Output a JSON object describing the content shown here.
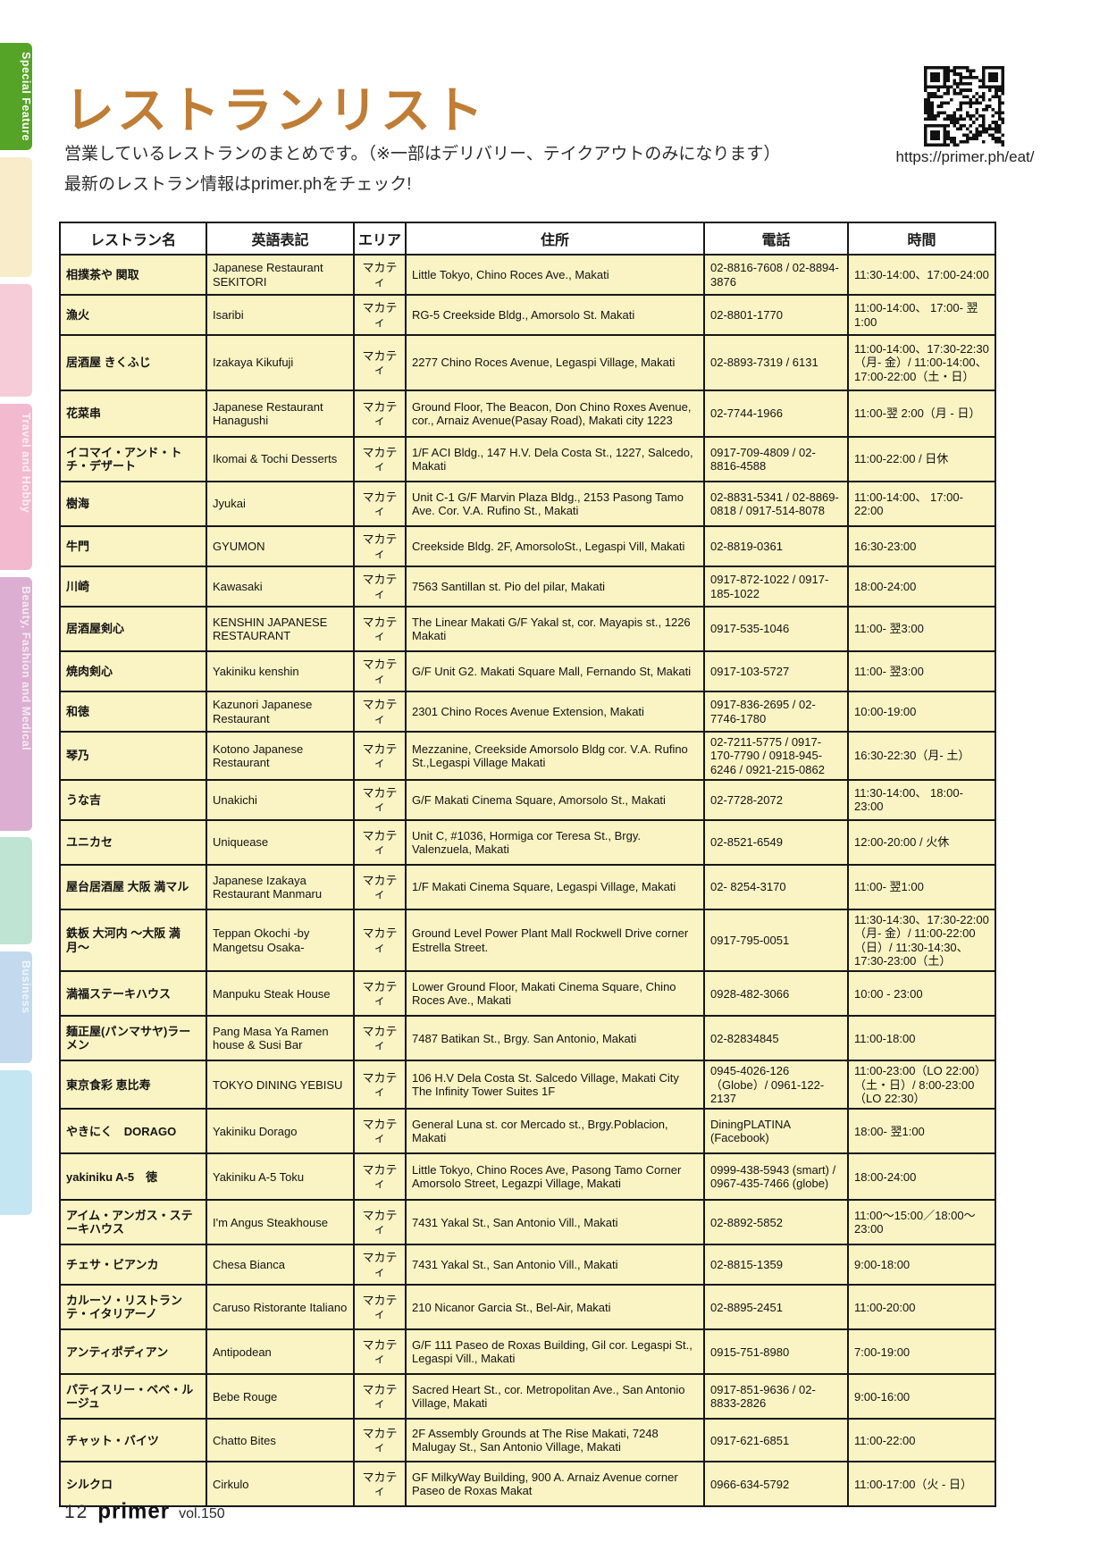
{
  "page": {
    "title": "レストランリスト",
    "subtitle_line1": "営業しているレストランのまとめです。（※一部はデリバリー、テイクアウトのみになります）",
    "subtitle_line2": "最新のレストラン情報はprimer.phをチェック!",
    "qr_url": "https://primer.ph/eat/"
  },
  "sidebar": {
    "tabs": [
      {
        "label": "Special Feature",
        "color": "#56a427",
        "text_color": "#ffffff"
      },
      {
        "label": "",
        "color": "#f8ecca",
        "text_color": "#efe0b2"
      },
      {
        "label": "",
        "color": "#f6ccd9",
        "text_color": "#eeb7ca"
      },
      {
        "label": "Travel and Hobby",
        "color": "#f3b9cf",
        "text_color": "#fdeef5"
      },
      {
        "label": "Beauty, Fashion and Medical",
        "color": "#dcaed2",
        "text_color": "#f6e9f3"
      },
      {
        "label": "",
        "color": "#bfe4d4",
        "text_color": "#a9d8c4"
      },
      {
        "label": "Business",
        "color": "#c3d9ee",
        "text_color": "#eef5fc"
      },
      {
        "label": "",
        "color": "#c4e6f2",
        "text_color": "#aedcee"
      }
    ]
  },
  "table": {
    "headers": [
      "レストラン名",
      "英語表記",
      "エリア",
      "住所",
      "電話",
      "時間"
    ],
    "rows": [
      {
        "name": "相撲茶や 関取",
        "english": "Japanese Restaurant SEKITORI",
        "area": "マカティ",
        "address": "Little Tokyo, Chino Roces Ave., Makati",
        "phone": "02-8816-7608 / 02-8894-3876",
        "hours": "11:30-14:00、17:00-24:00"
      },
      {
        "name": "漁火",
        "english": "Isaribi",
        "area": "マカティ",
        "address": "RG-5 Creekside Bldg., Amorsolo St. Makati",
        "phone": "02-8801-1770",
        "hours": "11:00-14:00、 17:00- 翌1:00"
      },
      {
        "name": "居酒屋 きくふじ",
        "english": "Izakaya Kikufuji",
        "area": "マカティ",
        "address": "2277 Chino Roces Avenue, Legaspi Village, Makati",
        "phone": "02-8893-7319 / 6131",
        "hours": "11:00-14:00、17:30-22:30（月- 金）/ 11:00-14:00、 17:00-22:00（土・日）"
      },
      {
        "name": "花菜串",
        "english": "Japanese Restaurant Hanagushi",
        "area": "マカティ",
        "address": "Ground Floor, The Beacon, Don Chino Roxes Avenue, cor., Arnaiz Avenue(Pasay Road), Makati city 1223",
        "phone": "02-7744-1966",
        "hours": "11:00-翌 2:00（月 - 日）"
      },
      {
        "name": "イコマイ・アンド・トチ・デザート",
        "english": "Ikomai & Tochi Desserts",
        "area": "マカティ",
        "address": "1/F ACI Bldg., 147 H.V. Dela Costa St., 1227, Salcedo, Makati",
        "phone": "0917-709-4809 / 02-8816-4588",
        "hours": "11:00-22:00 / 日休"
      },
      {
        "name": "樹海",
        "english": "Jyukai",
        "area": "マカティ",
        "address": "Unit C-1 G/F Marvin Plaza Bldg., 2153 Pasong Tamo Ave. Cor. V.A. Rufino St., Makati",
        "phone": "02-8831-5341 / 02-8869-0818 / 0917-514-8078",
        "hours": "11:00-14:00、 17:00-22:00"
      },
      {
        "name": "牛門",
        "english": "GYUMON",
        "area": "マカティ",
        "address": "Creekside Bldg. 2F, AmorsoloSt., Legaspi Vill, Makati",
        "phone": "02-8819-0361",
        "hours": "16:30-23:00"
      },
      {
        "name": "川崎",
        "english": "Kawasaki",
        "area": "マカティ",
        "address": "7563 Santillan st. Pio del pilar, Makati",
        "phone": "0917-872-1022 / 0917-185-1022",
        "hours": "18:00-24:00"
      },
      {
        "name": "居酒屋剣心",
        "english": "KENSHIN JAPANESE RESTAURANT",
        "area": "マカティ",
        "address": "The Linear Makati G/F Yakal st, cor. Mayapis st., 1226 Makati",
        "phone": "0917-535-1046",
        "hours": "11:00- 翌3:00"
      },
      {
        "name": "焼肉剣心",
        "english": "Yakiniku kenshin",
        "area": "マカティ",
        "address": "G/F Unit G2. Makati Square Mall, Fernando St, Makati",
        "phone": "0917-103-5727",
        "hours": "11:00- 翌3:00"
      },
      {
        "name": "和徳",
        "english": "Kazunori Japanese Restaurant",
        "area": "マカティ",
        "address": "2301 Chino Roces Avenue Extension, Makati",
        "phone": "0917-836-2695 / 02-7746-1780",
        "hours": "10:00-19:00"
      },
      {
        "name": "琴乃",
        "english": "Kotono Japanese Restaurant",
        "area": "マカティ",
        "address": "Mezzanine, Creekside Amorsolo Bldg cor. V.A. Rufino St.,Legaspi Village Makati",
        "phone": "02-7211-5775 / 0917-170-7790 / 0918-945-6246 / 0921-215-0862",
        "hours": "16:30-22:30（月- 土）"
      },
      {
        "name": "うな吉",
        "english": "Unakichi",
        "area": "マカティ",
        "address": "G/F Makati Cinema Square, Amorsolo St., Makati",
        "phone": "02-7728-2072",
        "hours": "11:30-14:00、 18:00-23:00"
      },
      {
        "name": "ユニカセ",
        "english": "Uniquease",
        "area": "マカティ",
        "address": "Unit C, #1036, Hormiga cor Teresa St., Brgy. Valenzuela, Makati",
        "phone": "02-8521-6549",
        "hours": "12:00-20:00 / 火休"
      },
      {
        "name": "屋台居酒屋 大阪 満マル",
        "english": "Japanese Izakaya Restaurant Manmaru",
        "area": "マカティ",
        "address": "1/F Makati Cinema Square, Legaspi Village, Makati",
        "phone": "02- 8254-3170",
        "hours": "11:00- 翌1:00"
      },
      {
        "name": "鉄板 大河内 〜大阪 満月〜",
        "english": "Teppan Okochi -by Mangetsu Osaka-",
        "area": "マカティ",
        "address": "Ground Level Power Plant Mall Rockwell Drive corner Estrella Street.",
        "phone": "0917-795-0051",
        "hours": "11:30-14:30、17:30-22:00（月- 金）/ 11:00-22:00（日）/ 11:30-14:30、17:30-23:00（土）"
      },
      {
        "name": "満福ステーキハウス",
        "english": "Manpuku Steak House",
        "area": "マカティ",
        "address": "Lower Ground Floor, Makati Cinema Square, Chino Roces Ave., Makati",
        "phone": "0928-482-3066",
        "hours": "10:00 - 23:00"
      },
      {
        "name": "麺正屋(パンマサヤ)ラーメン",
        "english": "Pang Masa Ya Ramen house & Susi Bar",
        "area": "マカティ",
        "address": "7487 Batikan St., Brgy. San Antonio, Makati",
        "phone": "02-82834845",
        "hours": "11:00-18:00"
      },
      {
        "name": "東京食彩 恵比寿",
        "english": "TOKYO DINING YEBISU",
        "area": "マカティ",
        "address": "106 H.V Dela Costa St. Salcedo Village, Makati City The Infinity Tower Suites 1F",
        "phone": "0945-4026-126（Globe）/ 0961-122-2137",
        "hours": "11:00-23:00（LO 22:00）（土・日）/ 8:00-23:00（LO 22:30）"
      },
      {
        "name": "やきにく　DORAGO",
        "english": "Yakiniku Dorago",
        "area": "マカティ",
        "address": "General Luna st. cor Mercado st., Brgy.Poblacion, Makati",
        "phone": "DiningPLATINA (Facebook)",
        "hours": "18:00- 翌1:00"
      },
      {
        "name": "yakiniku A-5　徳",
        "english": "Yakiniku A-5 Toku",
        "area": "マカティ",
        "address": "Little Tokyo, Chino Roces Ave, Pasong Tamo Corner Amorsolo Street, Legazpi Village, Makati",
        "phone": "0999-438-5943 (smart) / 0967-435-7466 (globe)",
        "hours": "18:00-24:00"
      },
      {
        "name": "アイム・アンガス・ステーキハウス",
        "english": "I'm Angus Steakhouse",
        "area": "マカティ",
        "address": "7431 Yakal St., San Antonio Vill., Makati",
        "phone": "02-8892-5852",
        "hours": "11:00〜15:00／18:00〜23:00"
      },
      {
        "name": "チェサ・ビアンカ",
        "english": "Chesa Bianca",
        "area": "マカティ",
        "address": "7431 Yakal St., San Antonio Vill., Makati",
        "phone": "02-8815-1359",
        "hours": "9:00-18:00"
      },
      {
        "name": "カルーソ・リストランテ・イタリアーノ",
        "english": "Caruso Ristorante Italiano",
        "area": "マカティ",
        "address": "210 Nicanor Garcia St., Bel-Air, Makati",
        "phone": "02-8895-2451",
        "hours": "11:00-20:00"
      },
      {
        "name": "アンティポディアン",
        "english": "Antipodean",
        "area": "マカティ",
        "address": "G/F 111 Paseo de Roxas Building, Gil cor. Legaspi St., Legaspi Vill., Makati",
        "phone": "0915-751-8980",
        "hours": "7:00-19:00"
      },
      {
        "name": "パティスリー・ベベ・ルージュ",
        "english": "Bebe Rouge",
        "area": "マカティ",
        "address": "Sacred Heart St., cor. Metropolitan Ave., San Antonio Village, Makati",
        "phone": "0917-851-9636 / 02-8833-2826",
        "hours": "9:00-16:00"
      },
      {
        "name": "チャット・バイツ",
        "english": "Chatto Bites",
        "area": "マカティ",
        "address": "2F Assembly Grounds at The Rise Makati, 7248 Malugay St., San Antonio Village, Makati",
        "phone": "0917-621-6851",
        "hours": "11:00-22:00"
      },
      {
        "name": "シルクロ",
        "english": "Cirkulo",
        "area": "マカティ",
        "address": "GF MilkyWay Building, 900 A. Arnaiz Avenue corner Paseo de Roxas Makat",
        "phone": "0966-634-5792",
        "hours": "11:00-17:00（火 - 日）"
      }
    ]
  },
  "footer": {
    "page_number": "12",
    "logo": "primer",
    "volume": "vol.150"
  },
  "colors": {
    "title": "#bf7d35",
    "cell_bg": "#faf3c3",
    "border": "#171717"
  }
}
